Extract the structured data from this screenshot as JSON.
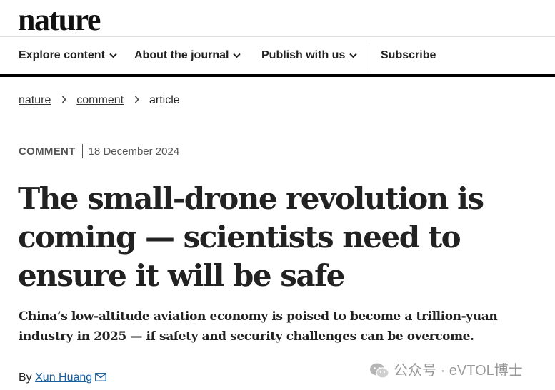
{
  "header": {
    "logo": "nature",
    "nav": [
      {
        "label": "Explore content",
        "has_dropdown": true
      },
      {
        "label": "About the journal",
        "has_dropdown": true
      },
      {
        "label": "Publish with us",
        "has_dropdown": true
      },
      {
        "label": "Subscribe",
        "has_dropdown": false
      }
    ]
  },
  "breadcrumb": {
    "items": [
      "nature",
      "comment"
    ],
    "current": "article"
  },
  "article": {
    "type": "COMMENT",
    "date": "18 December 2024",
    "title": "The small-drone revolution is coming — scientists need to ensure it will be safe",
    "standfirst": "China’s low-altitude aviation economy is poised to become a trillion-yuan industry in 2025 — if safety and security challenges can be overcome.",
    "byline_prefix": "By",
    "author": "Xun Huang"
  },
  "watermark": {
    "text": "公众号 · eVTOL博士",
    "icon": "wechat-icon"
  },
  "colors": {
    "header_bar": "#000000",
    "author_link": "#1a5f9e",
    "watermark": "#9a9a9a"
  }
}
